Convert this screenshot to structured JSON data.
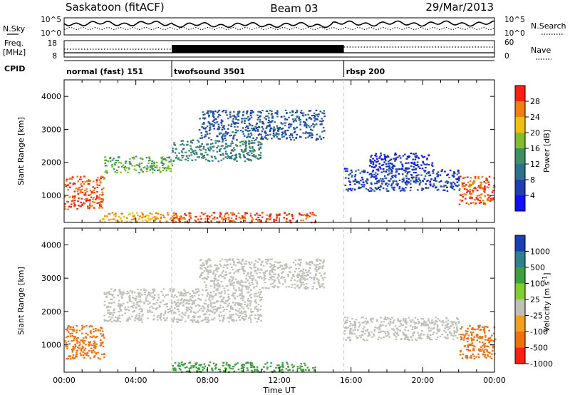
{
  "header": {
    "title": "Saskatoon (fitACF)",
    "beam": "Beam 03",
    "date": "29/Mar/2013"
  },
  "nsky_panel": {
    "left_label": "N.Sky",
    "right_label": "N.Search",
    "left_ticks": [
      "10^5",
      "10^0"
    ],
    "right_ticks": [
      "10^5",
      "10^0"
    ]
  },
  "freq_panel": {
    "left_label_line1": "Freq.",
    "left_label_line2": "[MHz]",
    "right_label": "Nave",
    "left_ticks": [
      "18",
      "8"
    ],
    "right_ticks": [
      "60",
      "0"
    ]
  },
  "cpid": {
    "label": "CPID",
    "segments": [
      {
        "name": "normal (fast) 151",
        "start_hour": 0,
        "end_hour": 6
      },
      {
        "name": "twofsound 3501",
        "start_hour": 6,
        "end_hour": 15.6
      },
      {
        "name": "rbsp 200",
        "start_hour": 15.6,
        "end_hour": 24
      }
    ]
  },
  "chart_data": [
    {
      "type": "heatmap",
      "name": "power",
      "ylabel": "Slant Range [km]",
      "xlabel": "",
      "xlim": [
        0,
        24
      ],
      "ylim": [
        180,
        4500
      ],
      "yticks": [
        1000,
        2000,
        3000,
        4000
      ],
      "colorbar": {
        "label": "Power [dB]",
        "ticks": [
          4,
          8,
          12,
          16,
          20,
          24,
          28
        ],
        "colors": [
          "#1010ff",
          "#1f3fb0",
          "#2f6f8f",
          "#3f8f60",
          "#7fbf2f",
          "#efbf10",
          "#ef7f10",
          "#ff2010"
        ]
      },
      "regions": [
        {
          "t": [
            0.0,
            2.2
          ],
          "r": [
            600,
            1600
          ],
          "level": 28
        },
        {
          "t": [
            2.2,
            6.0
          ],
          "r": [
            1700,
            2200
          ],
          "level": 16
        },
        {
          "t": [
            6.0,
            11.0
          ],
          "r": [
            2050,
            2700
          ],
          "level": 12
        },
        {
          "t": [
            7.5,
            14.5
          ],
          "r": [
            2700,
            3600
          ],
          "level": 8
        },
        {
          "t": [
            2.0,
            6.5
          ],
          "r": [
            200,
            500
          ],
          "level": 24
        },
        {
          "t": [
            6.0,
            14.0
          ],
          "r": [
            200,
            500
          ],
          "level": 28
        },
        {
          "t": [
            15.6,
            22.0
          ],
          "r": [
            1150,
            1850
          ],
          "level": 6
        },
        {
          "t": [
            17.0,
            20.5
          ],
          "r": [
            1800,
            2300
          ],
          "level": 4
        },
        {
          "t": [
            22.0,
            24.0
          ],
          "r": [
            750,
            1600
          ],
          "level": 28
        }
      ]
    },
    {
      "type": "heatmap",
      "name": "velocity",
      "ylabel": "Slant Range [km]",
      "xlabel": "Time UT",
      "xlim": [
        0,
        24
      ],
      "ylim": [
        180,
        4500
      ],
      "yticks": [
        1000,
        2000,
        3000,
        4000
      ],
      "xticks": [
        "00:00",
        "04:00",
        "08:00",
        "12:00",
        "16:00",
        "20:00",
        "00:00"
      ],
      "colorbar": {
        "label": "Velocity [m s^-1]",
        "ticks": [
          "1000",
          "500",
          "100",
          "25",
          "-25",
          "-100",
          "-500",
          "-1000"
        ],
        "colors": [
          "#1a3fb0",
          "#2f7f8f",
          "#3f9f3f",
          "#7fcf2f",
          "#c0c0b8",
          "#f0a020",
          "#f07010",
          "#ff2010"
        ]
      },
      "regions": [
        {
          "t": [
            0.0,
            2.2
          ],
          "r": [
            600,
            1600
          ],
          "level": -100
        },
        {
          "t": [
            2.2,
            11.0
          ],
          "r": [
            1700,
            2700
          ],
          "level": 0
        },
        {
          "t": [
            7.5,
            14.5
          ],
          "r": [
            2700,
            3600
          ],
          "level": 0
        },
        {
          "t": [
            6.0,
            14.0
          ],
          "r": [
            200,
            500
          ],
          "level": 100
        },
        {
          "t": [
            15.6,
            22.0
          ],
          "r": [
            1150,
            1850
          ],
          "level": 0
        },
        {
          "t": [
            22.0,
            24.0
          ],
          "r": [
            600,
            1600
          ],
          "level": -100
        }
      ]
    }
  ]
}
